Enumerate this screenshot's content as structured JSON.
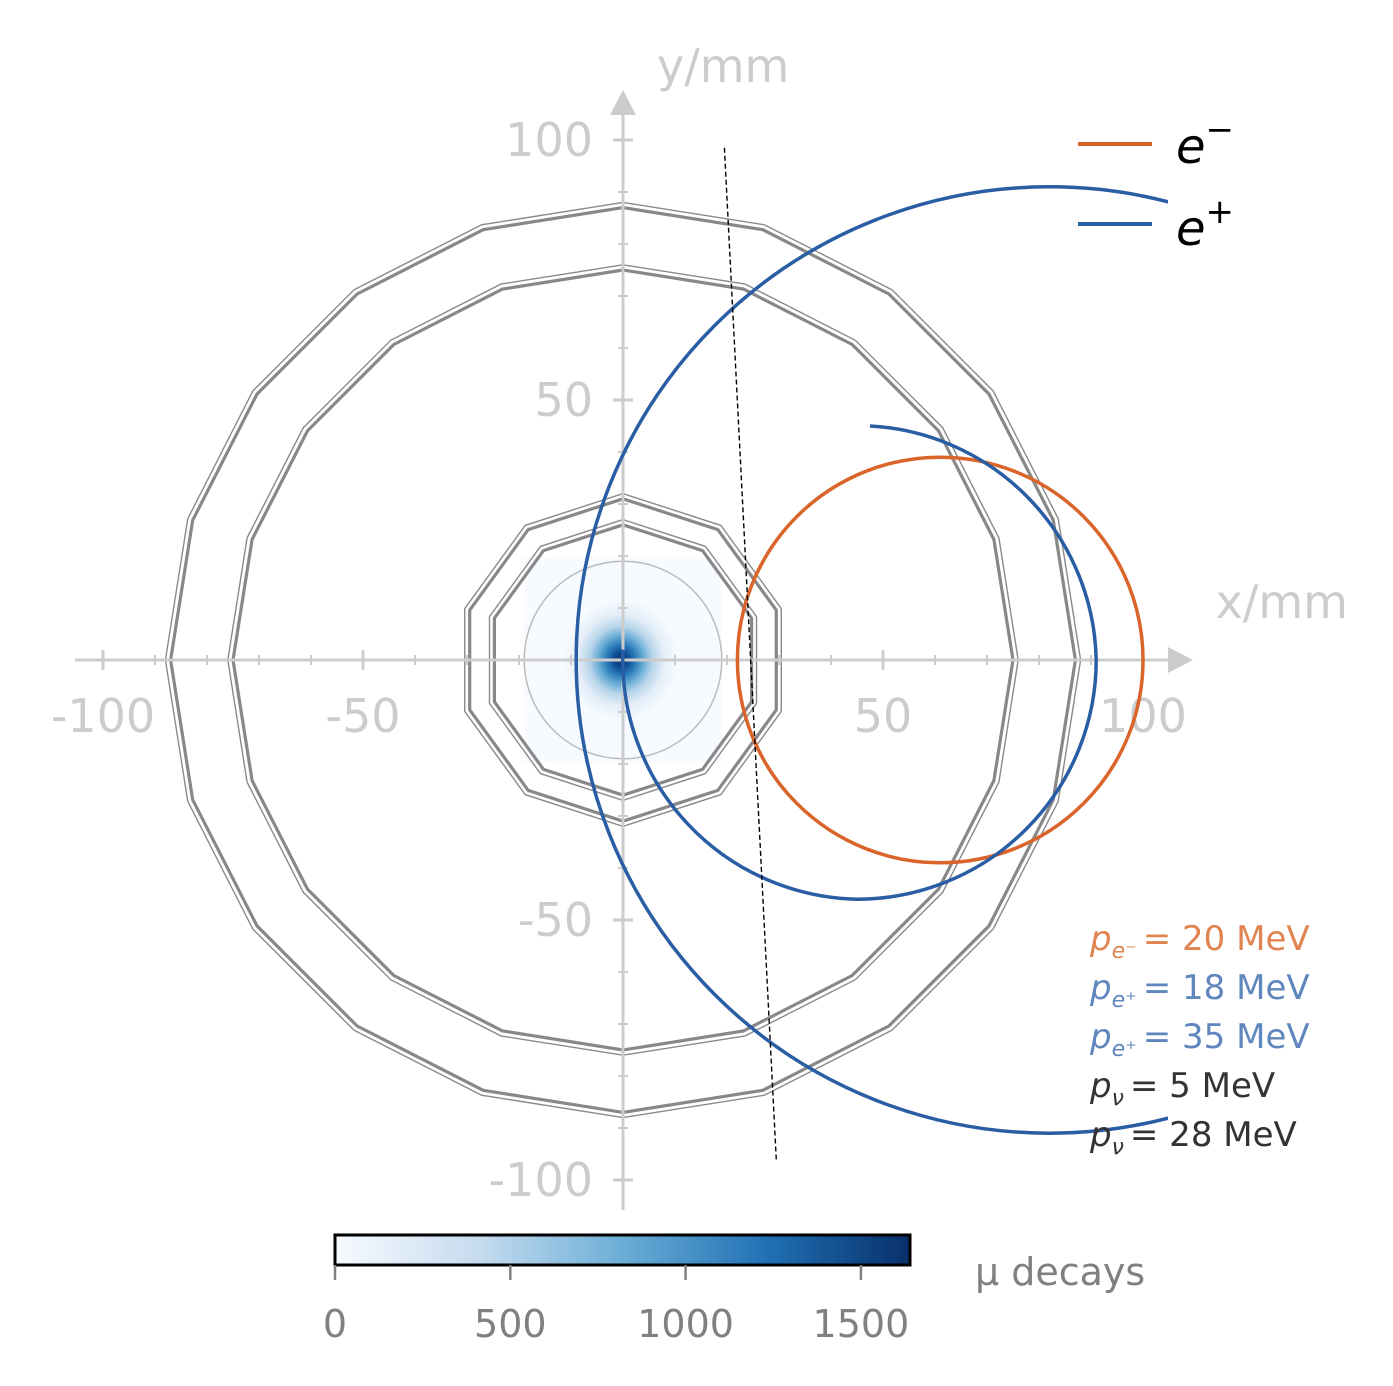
{
  "chart_data": {
    "type": "scatter",
    "x_axis": {
      "label": "x/mm",
      "range": [
        -100,
        100
      ],
      "ticks": [
        -100,
        -50,
        50,
        100
      ],
      "tick_labels": [
        "-100",
        "-50",
        "50",
        "100"
      ]
    },
    "y_axis": {
      "label": "y/mm",
      "range": [
        -100,
        100
      ],
      "ticks": [
        100,
        50,
        -50,
        -100
      ],
      "tick_labels": [
        "100",
        "50",
        "-50",
        "-100"
      ]
    },
    "grid": false,
    "detector_layers": [
      {
        "sides": 10,
        "inner_r": 31,
        "outer_r": 32
      },
      {
        "sides": 10,
        "inner_r": 26,
        "outer_r": 27
      },
      {
        "sides": 20,
        "inner_r": 75,
        "outer_r": 76
      },
      {
        "sides": 20,
        "inner_r": 87,
        "outer_r": 88
      }
    ],
    "target_circle_r": 19,
    "muon_decay_density": {
      "center": [
        0,
        0
      ],
      "sigma_mm": 6,
      "peak_value": 1650,
      "extent_mm": 19
    },
    "tracks": [
      {
        "name": "e^-",
        "legend": true,
        "color": "#d9652b",
        "center": [
          61,
          0
        ],
        "radius": 39,
        "clip_xmax": 106
      },
      {
        "name": "e^+",
        "legend": true,
        "color": "#2a5ea4",
        "center": [
          82,
          0
        ],
        "radius": 91,
        "clip_xmax": 106
      },
      {
        "name": "",
        "legend": false,
        "color": "#2a5ea4",
        "center": [
          45,
          0
        ],
        "radius": 46,
        "arc_from_deg": 90,
        "arc_to_deg": -270,
        "start": [
          47.5,
          45
        ]
      }
    ],
    "neutrino_line": {
      "from": [
        19.5,
        98.5
      ],
      "to": [
        29.5,
        -96.5
      ],
      "style": "dashed"
    },
    "legend": {
      "placement": "top-right",
      "entries": [
        {
          "label_base": "e",
          "label_sup": "−",
          "color": "#d9652b"
        },
        {
          "label_base": "e",
          "label_sup": "+",
          "color": "#2a5ea4"
        }
      ]
    },
    "annotations": [
      {
        "var": "p",
        "sub": "e⁻",
        "value": "= 20 MeV",
        "color": "#e08551"
      },
      {
        "var": "p",
        "sub": "e⁺",
        "value": "= 18 MeV",
        "color": "#5f86bd"
      },
      {
        "var": "p",
        "sub": "e⁺",
        "value": "= 35 MeV",
        "color": "#5f86bd"
      },
      {
        "var": "p",
        "sub": "ν",
        "value": "= 5 MeV",
        "color": "#333333"
      },
      {
        "var": "p",
        "sub": "ν",
        "value": "= 28 MeV",
        "color": "#333333"
      }
    ],
    "colorbar": {
      "label": "μ decays",
      "range": [
        0,
        1640
      ],
      "ticks": [
        0,
        500,
        1000,
        1500
      ],
      "tick_labels": [
        "0",
        "500",
        "1000",
        "1500"
      ],
      "colormap": [
        "#f7fbff",
        "#c6dbef",
        "#6baed6",
        "#2171b5",
        "#08306b"
      ]
    }
  }
}
